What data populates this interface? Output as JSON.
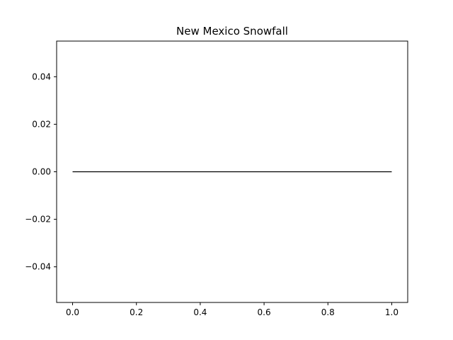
{
  "chart_data": {
    "type": "line",
    "title": "New Mexico Snowfall",
    "xlabel": "",
    "ylabel": "",
    "xlim": [
      -0.05,
      1.05
    ],
    "ylim": [
      -0.055,
      0.055
    ],
    "xticks": [
      0.0,
      0.2,
      0.4,
      0.6,
      0.8,
      1.0
    ],
    "xtick_labels": [
      "0.0",
      "0.2",
      "0.4",
      "0.6",
      "0.8",
      "1.0"
    ],
    "yticks": [
      0.04,
      0.02,
      0.0,
      -0.02,
      -0.04
    ],
    "ytick_labels": [
      "0.04",
      "0.02",
      "0.00",
      "−0.02",
      "−0.04"
    ],
    "grid": false,
    "series": [
      {
        "x": [
          0.0,
          1.0
        ],
        "y": [
          0.0,
          0.0
        ],
        "color": "#000000"
      }
    ]
  }
}
